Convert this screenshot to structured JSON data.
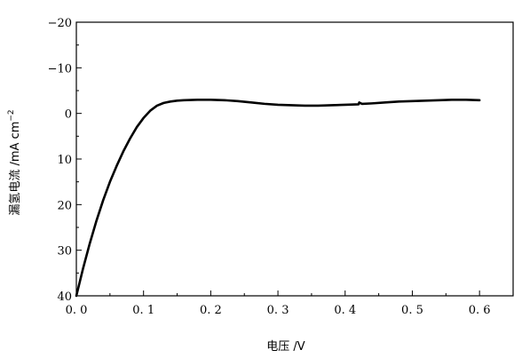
{
  "chart_data": {
    "type": "line",
    "title": "",
    "xlabel": "电压 /V",
    "ylabel": "漏氢电流 /mA cm",
    "ylabel_superscript": "−2",
    "xlim": [
      0.0,
      0.65
    ],
    "ylim": [
      -20,
      40
    ],
    "y_inverted": true,
    "grid": false,
    "legend": "none",
    "x_ticks": [
      0.0,
      0.1,
      0.2,
      0.3,
      0.4,
      0.5,
      0.6
    ],
    "x_tick_labels": [
      "0. 0",
      "0. 1",
      "0. 2",
      "0. 3",
      "0. 4",
      "0. 5",
      "0. 6"
    ],
    "y_ticks": [
      -20,
      -10,
      0,
      10,
      20,
      30,
      40
    ],
    "y_tick_labels": [
      "−20",
      "−10",
      "0",
      "10",
      "20",
      "30",
      "40"
    ],
    "series": [
      {
        "color": "#000000",
        "x": [
          0.0,
          0.01,
          0.02,
          0.03,
          0.04,
          0.05,
          0.06,
          0.07,
          0.08,
          0.09,
          0.1,
          0.11,
          0.12,
          0.13,
          0.14,
          0.15,
          0.16,
          0.18,
          0.2,
          0.22,
          0.24,
          0.26,
          0.28,
          0.3,
          0.32,
          0.34,
          0.36,
          0.38,
          0.4,
          0.42,
          0.421,
          0.425,
          0.44,
          0.46,
          0.48,
          0.5,
          0.52,
          0.54,
          0.56,
          0.58,
          0.6
        ],
        "y": [
          40,
          34,
          28.5,
          23.5,
          19,
          15,
          11.5,
          8.3,
          5.5,
          3.0,
          1.0,
          -0.6,
          -1.7,
          -2.3,
          -2.6,
          -2.8,
          -2.9,
          -3.0,
          -3.0,
          -2.9,
          -2.7,
          -2.4,
          -2.1,
          -1.9,
          -1.8,
          -1.7,
          -1.7,
          -1.8,
          -1.9,
          -2.0,
          -2.4,
          -2.1,
          -2.2,
          -2.4,
          -2.6,
          -2.7,
          -2.8,
          -2.9,
          -3.0,
          -3.0,
          -2.9
        ]
      }
    ]
  }
}
